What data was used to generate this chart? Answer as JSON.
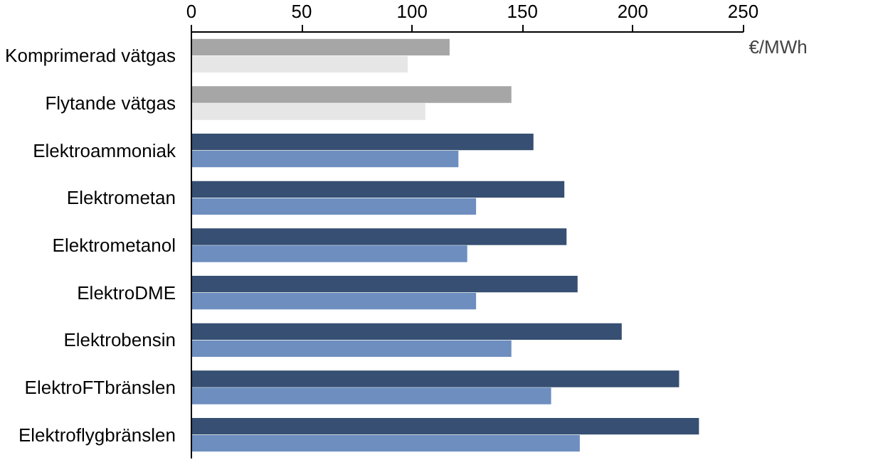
{
  "chart_data": {
    "type": "bar",
    "orientation": "horizontal",
    "xlabel": "€/MWh",
    "categories": [
      "Komprimerad vätgas",
      "Flytande vätgas",
      "Elektroammoniak",
      "Elektrometan",
      "Elektrometanol",
      "ElektroDME",
      "Elektrobensin",
      "ElektroFTbränslen",
      "Elektroflygbränslen"
    ],
    "series": [
      {
        "colors": [
          "#a6a6a6",
          "#a6a6a6",
          "#364f72",
          "#364f72",
          "#364f72",
          "#364f72",
          "#364f72",
          "#364f72",
          "#364f72"
        ],
        "values": [
          117,
          145,
          155,
          169,
          170,
          175,
          195,
          221,
          230
        ]
      },
      {
        "colors": [
          "#e6e6e6",
          "#e6e6e6",
          "#6d8ebf",
          "#6d8ebf",
          "#6d8ebf",
          "#6d8ebf",
          "#6d8ebf",
          "#6d8ebf",
          "#6d8ebf"
        ],
        "values": [
          98,
          106,
          121,
          129,
          125,
          129,
          145,
          163,
          176
        ]
      }
    ],
    "xlim": [
      0,
      250
    ],
    "xticks": [
      0,
      50,
      100,
      150,
      200,
      250
    ],
    "grid": false
  }
}
